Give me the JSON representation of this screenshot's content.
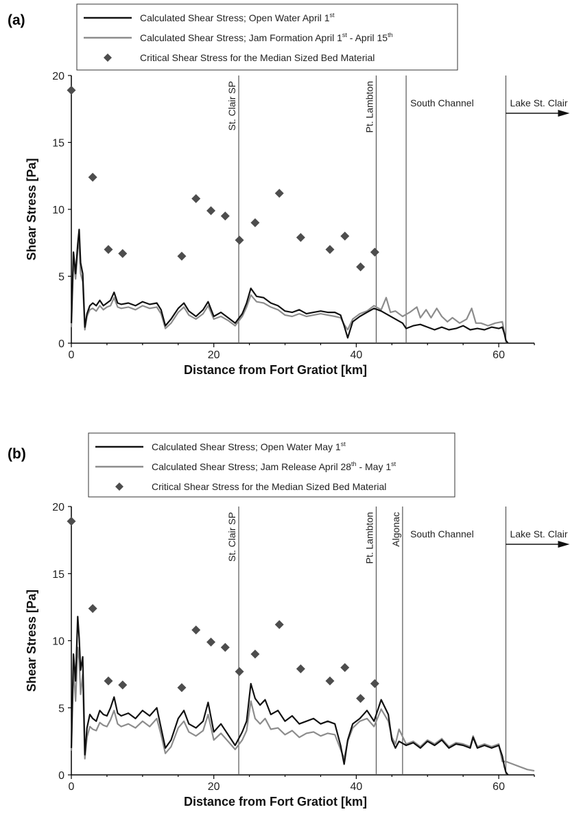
{
  "chart_data": [
    {
      "type": "line",
      "panel_label": "(a)",
      "xlabel": "Distance from Fort Gratiot [km]",
      "ylabel": "Shear Stress [Pa]",
      "xlim": [
        0,
        65
      ],
      "ylim": [
        0,
        20
      ],
      "xticks": [
        0,
        20,
        40,
        60
      ],
      "yticks": [
        0,
        5,
        10,
        15,
        20
      ],
      "grid": false,
      "legend": {
        "placement": "top",
        "entries": [
          {
            "kind": "line",
            "color": "#111111",
            "text": "Calculated Shear Stress; Open Water April 1",
            "sup1": "st",
            "text2": "",
            "sup2": ""
          },
          {
            "kind": "line",
            "color": "#8c8c8c",
            "text": "Calculated Shear Stress; Jam Formation  April 1",
            "sup1": "st",
            "text2": " - April 15",
            "sup2": "th"
          },
          {
            "kind": "marker",
            "color": "#4d4d4d",
            "text": "Critical Shear Stress for the Median Sized Bed Material",
            "sup1": "",
            "text2": "",
            "sup2": ""
          }
        ]
      },
      "vlines": [
        {
          "x": 23.5,
          "label": "St. Clair SP",
          "rotated": true
        },
        {
          "x": 42.8,
          "label": "Pt. Lambton",
          "rotated": true
        },
        {
          "x": 47.0,
          "label": "South Channel",
          "rotated": false,
          "side": "right"
        },
        {
          "x": 61.0,
          "label": "Lake St. Clair",
          "rotated": false,
          "side": "right",
          "arrow": true
        }
      ],
      "series": [
        {
          "name": "Calculated Shear Stress; Open Water April 1st",
          "color": "#111111",
          "x": [
            0,
            0.3,
            0.6,
            0.9,
            1.1,
            1.3,
            1.6,
            1.9,
            2.2,
            2.6,
            3.0,
            3.5,
            4.0,
            4.5,
            5.0,
            5.5,
            6.0,
            6.5,
            7.0,
            8.0,
            9.0,
            10.0,
            11.0,
            12.0,
            12.6,
            13.2,
            14.0,
            15.0,
            15.8,
            16.5,
            17.5,
            18.5,
            19.2,
            20.0,
            21.0,
            22.0,
            23.0,
            24.0,
            24.6,
            25.2,
            26.0,
            27.0,
            28.0,
            29.0,
            30.0,
            31.0,
            32.0,
            33.0,
            34.0,
            35.0,
            36.0,
            37.0,
            37.8,
            38.3,
            38.8,
            39.5,
            40.5,
            41.5,
            42.5,
            43.5,
            44.5,
            45.5,
            46.5,
            47.0,
            48.0,
            49.0,
            50.0,
            51.0,
            52.0,
            53.0,
            54.0,
            55.0,
            56.0,
            57.0,
            58.0,
            59.0,
            60.0,
            60.5,
            60.8,
            61.0,
            61.3
          ],
          "y": [
            1.5,
            6.8,
            5.2,
            7.4,
            8.5,
            6.0,
            5.2,
            1.2,
            2.2,
            2.8,
            3.0,
            2.8,
            3.2,
            2.8,
            3.0,
            3.2,
            3.8,
            3.0,
            2.9,
            3.0,
            2.8,
            3.1,
            2.9,
            3.0,
            2.5,
            1.3,
            1.8,
            2.6,
            3.0,
            2.4,
            2.0,
            2.5,
            3.1,
            2.0,
            2.3,
            1.9,
            1.5,
            2.2,
            3.0,
            4.1,
            3.5,
            3.4,
            3.0,
            2.8,
            2.4,
            2.3,
            2.5,
            2.2,
            2.3,
            2.4,
            2.3,
            2.3,
            2.1,
            1.3,
            0.4,
            1.6,
            2.0,
            2.3,
            2.6,
            2.4,
            2.1,
            1.8,
            1.5,
            1.1,
            1.3,
            1.4,
            1.2,
            1.0,
            1.2,
            1.0,
            1.1,
            1.3,
            1.0,
            1.1,
            1.0,
            1.2,
            1.1,
            1.2,
            0.7,
            0.2,
            0.0
          ]
        },
        {
          "name": "Calculated Shear Stress; Jam Formation April 1st - April 15th",
          "color": "#8c8c8c",
          "x": [
            0,
            0.3,
            0.6,
            0.9,
            1.1,
            1.3,
            1.6,
            1.9,
            2.2,
            2.6,
            3.0,
            3.5,
            4.0,
            4.5,
            5.0,
            5.5,
            6.0,
            6.5,
            7.0,
            8.0,
            9.0,
            10.0,
            11.0,
            12.0,
            12.6,
            13.2,
            14.0,
            15.0,
            15.8,
            16.5,
            17.5,
            18.5,
            19.2,
            20.0,
            21.0,
            22.0,
            23.0,
            24.0,
            24.6,
            25.2,
            26.0,
            27.0,
            28.0,
            29.0,
            30.0,
            31.0,
            32.0,
            33.0,
            34.0,
            35.0,
            36.0,
            37.0,
            37.8,
            38.3,
            38.8,
            39.5,
            40.5,
            41.5,
            42.5,
            43.5,
            44.2,
            44.8,
            45.5,
            46.5,
            47.5,
            48.5,
            49.0,
            49.8,
            50.5,
            51.3,
            52.0,
            52.8,
            53.5,
            54.5,
            55.5,
            56.2,
            56.8,
            57.5,
            58.5,
            59.5,
            60.5,
            60.8,
            61.0,
            61.3
          ],
          "y": [
            1.2,
            6.2,
            4.8,
            7.0,
            7.6,
            5.2,
            4.6,
            1.0,
            2.0,
            2.5,
            2.6,
            2.4,
            2.8,
            2.5,
            2.7,
            2.8,
            3.4,
            2.7,
            2.6,
            2.7,
            2.5,
            2.8,
            2.6,
            2.7,
            2.2,
            1.1,
            1.5,
            2.3,
            2.7,
            2.1,
            1.8,
            2.2,
            2.8,
            1.8,
            2.0,
            1.7,
            1.3,
            2.0,
            2.7,
            3.6,
            3.1,
            3.0,
            2.7,
            2.5,
            2.1,
            2.0,
            2.2,
            2.0,
            2.1,
            2.2,
            2.1,
            2.0,
            1.9,
            1.4,
            1.0,
            1.8,
            2.2,
            2.4,
            2.8,
            2.5,
            3.4,
            2.3,
            2.4,
            2.0,
            2.3,
            2.7,
            1.9,
            2.5,
            1.9,
            2.6,
            2.0,
            1.6,
            1.9,
            1.5,
            1.8,
            2.6,
            1.5,
            1.5,
            1.3,
            1.5,
            1.6,
            0.8,
            0.2,
            0.0
          ]
        }
      ],
      "markers": {
        "name": "Critical Shear Stress for the Median Sized Bed Material",
        "color": "#4d4d4d",
        "x": [
          0,
          3.0,
          5.2,
          7.2,
          15.5,
          17.5,
          19.6,
          21.6,
          23.6,
          25.8,
          29.2,
          32.2,
          36.3,
          38.4,
          40.6,
          42.6
        ],
        "y": [
          18.9,
          12.4,
          7.0,
          6.7,
          6.5,
          10.8,
          9.9,
          9.5,
          7.7,
          9.0,
          11.2,
          7.9,
          7.0,
          8.0,
          5.7,
          6.8
        ]
      }
    },
    {
      "type": "line",
      "panel_label": "(b)",
      "xlabel": "Distance from Fort Gratiot [km]",
      "ylabel": "Shear Stress [Pa]",
      "xlim": [
        0,
        65
      ],
      "ylim": [
        0,
        20
      ],
      "xticks": [
        0,
        20,
        40,
        60
      ],
      "yticks": [
        0,
        5,
        10,
        15,
        20
      ],
      "grid": false,
      "legend": {
        "placement": "top",
        "entries": [
          {
            "kind": "line",
            "color": "#111111",
            "text": "Calculated Shear Stress; Open Water May 1",
            "sup1": "st",
            "text2": "",
            "sup2": ""
          },
          {
            "kind": "line",
            "color": "#8c8c8c",
            "text": "Calculated Shear Stress; Jam Release  April 28",
            "sup1": "th",
            "text2": " - May 1",
            "sup2": "st"
          },
          {
            "kind": "marker",
            "color": "#4d4d4d",
            "text": "Critical Shear Stress for the Median Sized Bed Material",
            "sup1": "",
            "text2": "",
            "sup2": ""
          }
        ]
      },
      "vlines": [
        {
          "x": 23.5,
          "label": "St. Clair SP",
          "rotated": true
        },
        {
          "x": 42.8,
          "label": "Pt. Lambton",
          "rotated": true
        },
        {
          "x": 46.5,
          "label": "Algonac",
          "rotated": true
        },
        {
          "x": 47.0,
          "label": "South Channel",
          "rotated": false,
          "side": "right",
          "line": false
        },
        {
          "x": 61.0,
          "label": "Lake St. Clair",
          "rotated": false,
          "side": "right",
          "arrow": true
        }
      ],
      "series": [
        {
          "name": "Calculated Shear Stress; Open Water May 1st",
          "color": "#111111",
          "x": [
            0,
            0.3,
            0.6,
            0.9,
            1.1,
            1.3,
            1.6,
            1.9,
            2.2,
            2.6,
            3.0,
            3.5,
            4.0,
            4.5,
            5.0,
            5.5,
            6.0,
            6.5,
            7.0,
            8.0,
            9.0,
            10.0,
            11.0,
            12.0,
            12.6,
            13.2,
            14.0,
            15.0,
            15.8,
            16.5,
            17.5,
            18.5,
            19.2,
            20.0,
            21.0,
            22.0,
            23.0,
            24.0,
            24.6,
            25.2,
            25.8,
            26.5,
            27.2,
            28.0,
            29.0,
            30.0,
            31.0,
            32.0,
            33.0,
            34.0,
            35.0,
            36.0,
            37.0,
            37.8,
            38.3,
            38.8,
            39.5,
            40.5,
            41.5,
            42.5,
            43.5,
            44.5,
            45.0,
            45.5,
            46.0,
            47.0,
            48.0,
            49.0,
            50.0,
            51.0,
            52.0,
            53.0,
            54.0,
            55.0,
            56.0,
            56.4,
            57.0,
            58.0,
            59.0,
            60.0,
            60.5,
            60.8,
            61.0,
            61.3
          ],
          "y": [
            2.0,
            9.0,
            7.0,
            11.8,
            10.2,
            7.8,
            8.8,
            1.5,
            3.5,
            4.5,
            4.2,
            4.0,
            4.8,
            4.5,
            4.4,
            5.0,
            5.8,
            4.6,
            4.4,
            4.6,
            4.2,
            4.8,
            4.4,
            5.0,
            3.5,
            2.0,
            2.6,
            4.2,
            4.8,
            3.8,
            3.5,
            4.0,
            5.4,
            3.2,
            3.8,
            3.0,
            2.2,
            3.2,
            4.0,
            6.8,
            5.7,
            5.2,
            5.6,
            4.5,
            4.8,
            4.0,
            4.4,
            3.8,
            4.0,
            4.2,
            3.8,
            4.0,
            3.8,
            2.2,
            0.8,
            2.6,
            3.8,
            4.2,
            4.8,
            4.0,
            5.6,
            4.5,
            2.6,
            2.0,
            2.5,
            2.2,
            2.4,
            2.0,
            2.5,
            2.2,
            2.6,
            2.0,
            2.3,
            2.2,
            2.0,
            2.8,
            2.0,
            2.2,
            2.0,
            2.2,
            1.4,
            0.6,
            0.2,
            0.0
          ]
        },
        {
          "name": "Calculated Shear Stress; Jam Release April 28th - May 1st",
          "color": "#8c8c8c",
          "x": [
            0,
            0.3,
            0.6,
            0.9,
            1.1,
            1.3,
            1.6,
            1.9,
            2.2,
            2.6,
            3.0,
            3.5,
            4.0,
            4.5,
            5.0,
            5.5,
            6.0,
            6.5,
            7.0,
            8.0,
            9.0,
            10.0,
            11.0,
            12.0,
            12.6,
            13.2,
            14.0,
            15.0,
            15.8,
            16.5,
            17.5,
            18.5,
            19.2,
            20.0,
            21.0,
            22.0,
            23.0,
            24.0,
            24.6,
            25.2,
            25.8,
            26.5,
            27.2,
            28.0,
            29.0,
            30.0,
            31.0,
            32.0,
            33.0,
            34.0,
            35.0,
            36.0,
            37.0,
            37.8,
            38.3,
            38.8,
            39.5,
            40.5,
            41.5,
            42.5,
            43.5,
            44.5,
            45.0,
            45.5,
            46.0,
            47.0,
            48.0,
            49.0,
            50.0,
            51.0,
            52.0,
            53.0,
            54.0,
            55.0,
            56.0,
            56.4,
            57.0,
            58.0,
            59.0,
            60.0,
            60.5,
            61.0,
            62.0,
            63.0,
            64.0,
            65.0
          ],
          "y": [
            1.8,
            8.0,
            5.5,
            9.5,
            8.6,
            6.0,
            7.5,
            1.2,
            2.8,
            3.6,
            3.4,
            3.3,
            3.9,
            3.7,
            3.6,
            4.1,
            4.8,
            3.8,
            3.6,
            3.8,
            3.5,
            4.0,
            3.6,
            4.2,
            3.0,
            1.6,
            2.1,
            3.5,
            4.0,
            3.2,
            2.9,
            3.3,
            4.5,
            2.6,
            3.1,
            2.5,
            1.9,
            2.6,
            3.3,
            5.5,
            4.2,
            3.8,
            4.2,
            3.4,
            3.5,
            3.0,
            3.3,
            2.8,
            3.1,
            3.2,
            2.9,
            3.1,
            3.0,
            1.9,
            1.2,
            2.5,
            3.5,
            4.0,
            4.2,
            3.6,
            4.9,
            4.0,
            2.8,
            2.3,
            3.4,
            2.3,
            2.5,
            2.1,
            2.6,
            2.3,
            2.7,
            2.1,
            2.4,
            2.3,
            2.1,
            2.9,
            2.1,
            2.3,
            2.1,
            2.3,
            1.0,
            1.0,
            0.8,
            0.6,
            0.4,
            0.3
          ]
        }
      ],
      "markers": {
        "name": "Critical Shear Stress for the Median Sized Bed Material",
        "color": "#4d4d4d",
        "x": [
          0,
          3.0,
          5.2,
          7.2,
          15.5,
          17.5,
          19.6,
          21.6,
          23.6,
          25.8,
          29.2,
          32.2,
          36.3,
          38.4,
          40.6,
          42.6
        ],
        "y": [
          18.9,
          12.4,
          7.0,
          6.7,
          6.5,
          10.8,
          9.9,
          9.5,
          7.7,
          9.0,
          11.2,
          7.9,
          7.0,
          8.0,
          5.7,
          6.8
        ]
      }
    }
  ]
}
